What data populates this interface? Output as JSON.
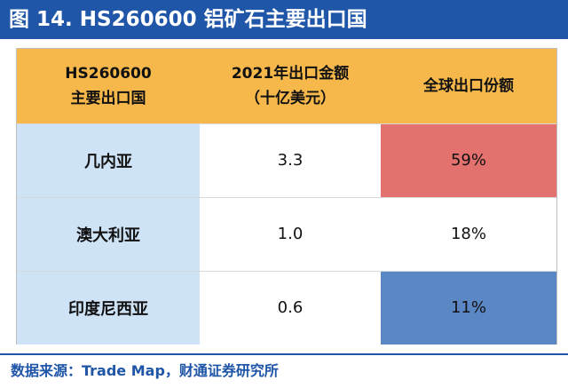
{
  "title": "图 14. HS260600 铝矿石主要出口国",
  "table": {
    "headers": [
      [
        "HS260600",
        "主要出口国"
      ],
      [
        "2021年出口金额",
        "（十亿美元）"
      ],
      [
        "全球出口份额"
      ]
    ],
    "rows": [
      {
        "country": "几内亚",
        "value": "3.3",
        "share": "59%",
        "share_color": "#e3716e"
      },
      {
        "country": "澳大利亚",
        "value": "1.0",
        "share": "18%",
        "share_color": "#ffffff"
      },
      {
        "country": "印度尼西亚",
        "value": "0.6",
        "share": "11%",
        "share_color": "#5b87c4"
      }
    ]
  },
  "colors": {
    "title_bar": "#1f56a8",
    "header_bg": "#f7b84b",
    "country_bg": "#cfe3f6"
  },
  "source": "数据来源：Trade Map，财通证券研究所"
}
